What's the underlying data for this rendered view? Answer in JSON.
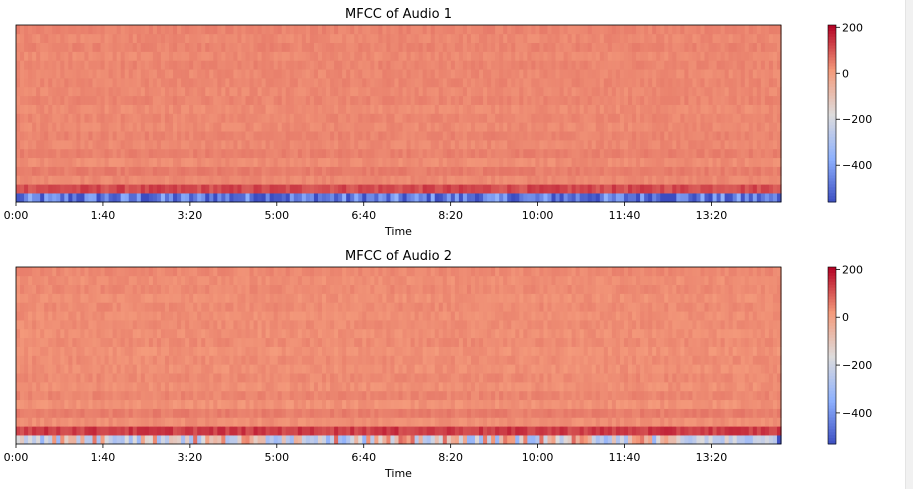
{
  "colors": {
    "colormap": "coolwarm",
    "cold": "#3b4cc0",
    "neutral": "#dddcdc",
    "warm": "#b40426"
  },
  "chart_data": [
    {
      "type": "heatmap",
      "title": "MFCC of Audio 1",
      "xlabel": "Time",
      "ylabel": "",
      "x_ticks": [
        "0:00",
        "1:40",
        "3:20",
        "5:00",
        "6:40",
        "8:20",
        "10:00",
        "11:40",
        "13:20"
      ],
      "xlim_seconds": [
        0,
        880
      ],
      "n_coefficients": 20,
      "colorbar": {
        "range": [
          -560,
          210
        ],
        "ticks": [
          "200",
          "0",
          "−200",
          "−400"
        ],
        "tick_values": [
          200,
          0,
          -200,
          -400
        ]
      },
      "coefficient_means": [
        -480,
        120,
        40,
        55,
        35,
        50,
        40,
        45,
        38,
        42,
        36,
        44,
        38,
        42,
        40,
        44,
        38,
        45,
        40,
        46
      ],
      "edge_note": "first coefficient strongly negative (blue) at start and end of recording"
    },
    {
      "type": "heatmap",
      "title": "MFCC of Audio 2",
      "xlabel": "Time",
      "ylabel": "",
      "x_ticks": [
        "0:00",
        "1:40",
        "3:20",
        "5:00",
        "6:40",
        "8:20",
        "10:00",
        "11:40",
        "13:20"
      ],
      "xlim_seconds": [
        0,
        880
      ],
      "n_coefficients": 20,
      "colorbar": {
        "range": [
          -530,
          210
        ],
        "ticks": [
          "200",
          "0",
          "−200",
          "−400"
        ],
        "tick_values": [
          200,
          0,
          -200,
          -400
        ]
      },
      "coefficient_means": [
        -120,
        140,
        40,
        60,
        35,
        50,
        38,
        45,
        38,
        42,
        35,
        44,
        38,
        42,
        40,
        44,
        38,
        45,
        40,
        46
      ],
      "edge_note": "first coefficient strongly negative (blue) at end of recording"
    }
  ]
}
